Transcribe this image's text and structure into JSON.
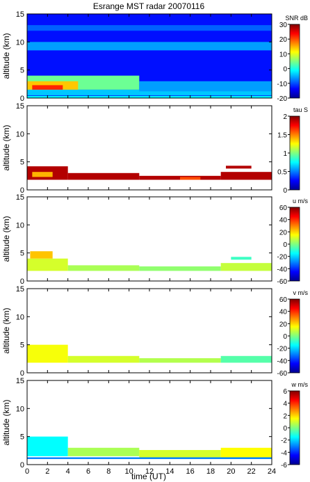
{
  "figure": {
    "title": "Esrange MST radar 20070116",
    "xlabel": "time (UT)",
    "ylabel": "altitude (km)"
  },
  "chart_data": [
    {
      "type": "heatmap",
      "title": "Esrange MST radar 20070116",
      "xlabel": "",
      "ylabel": "altitude (km)",
      "colorbar_label": "SNR dB",
      "xlim": [
        0,
        24
      ],
      "ylim": [
        0,
        15
      ],
      "yticks": [
        0,
        5,
        10,
        15
      ],
      "clim": [
        -20,
        30
      ],
      "cticks": [
        -20,
        -10,
        0,
        10,
        20,
        30
      ],
      "x_tick_labels_shown": false,
      "layers": [
        {
          "x_range": [
            0,
            24
          ],
          "y_range": [
            0,
            15
          ],
          "value": -13
        },
        {
          "x_range": [
            0,
            24
          ],
          "y_range": [
            0.5,
            1.5
          ],
          "value": -4
        },
        {
          "x_range": [
            0,
            11
          ],
          "y_range": [
            1.5,
            4
          ],
          "value": 4
        },
        {
          "x_range": [
            11,
            24
          ],
          "y_range": [
            1.2,
            3
          ],
          "value": -6
        },
        {
          "x_range": [
            0,
            5
          ],
          "y_range": [
            1.5,
            3
          ],
          "value": 14
        },
        {
          "x_range": [
            0.5,
            3.5
          ],
          "y_range": [
            1.5,
            2.3
          ],
          "value": 22
        },
        {
          "x_range": [
            0,
            24
          ],
          "y_range": [
            8.5,
            10
          ],
          "value": -6
        },
        {
          "x_range": [
            0,
            24
          ],
          "y_range": [
            12,
            13
          ],
          "value": -9
        },
        {
          "x_range": [
            0,
            24
          ],
          "y_range": [
            0,
            0.4
          ],
          "value": -2
        }
      ]
    },
    {
      "type": "heatmap",
      "title": "",
      "xlabel": "",
      "ylabel": "altitude (km)",
      "colorbar_label": "tau S",
      "xlim": [
        0,
        24
      ],
      "ylim": [
        0,
        15
      ],
      "yticks": [
        0,
        5,
        10,
        15
      ],
      "clim": [
        0,
        2
      ],
      "cticks": [
        0,
        0.5,
        1,
        1.5,
        2
      ],
      "x_tick_labels_shown": false,
      "layers": [
        {
          "x_range": [
            0,
            4
          ],
          "y_range": [
            1.8,
            4.2
          ],
          "value": 1.9
        },
        {
          "x_range": [
            0.5,
            2.5
          ],
          "y_range": [
            2.3,
            3.2
          ],
          "value": 1.4
        },
        {
          "x_range": [
            4,
            11
          ],
          "y_range": [
            1.8,
            3
          ],
          "value": 1.9
        },
        {
          "x_range": [
            11,
            19
          ],
          "y_range": [
            1.8,
            2.5
          ],
          "value": 1.9
        },
        {
          "x_range": [
            15,
            17
          ],
          "y_range": [
            1.8,
            2.3
          ],
          "value": 1.6
        },
        {
          "x_range": [
            19,
            24
          ],
          "y_range": [
            1.8,
            3.2
          ],
          "value": 1.9
        },
        {
          "x_range": [
            19.5,
            22
          ],
          "y_range": [
            3.8,
            4.3
          ],
          "value": 1.9
        }
      ]
    },
    {
      "type": "heatmap",
      "title": "",
      "xlabel": "",
      "ylabel": "altitude (km)",
      "colorbar_label": "u m/s",
      "xlim": [
        0,
        24
      ],
      "ylim": [
        0,
        15
      ],
      "yticks": [
        0,
        5,
        10,
        15
      ],
      "clim": [
        -60,
        60
      ],
      "cticks": [
        -60,
        -40,
        -20,
        0,
        20,
        40,
        60
      ],
      "x_tick_labels_shown": false,
      "layers": [
        {
          "x_range": [
            0,
            4
          ],
          "y_range": [
            1.8,
            4
          ],
          "value": 10
        },
        {
          "x_range": [
            0.3,
            2.5
          ],
          "y_range": [
            4,
            5.3
          ],
          "value": 22
        },
        {
          "x_range": [
            4,
            11
          ],
          "y_range": [
            1.8,
            2.8
          ],
          "value": 5
        },
        {
          "x_range": [
            11,
            19
          ],
          "y_range": [
            1.8,
            2.6
          ],
          "value": 2
        },
        {
          "x_range": [
            19,
            24
          ],
          "y_range": [
            1.8,
            3.2
          ],
          "value": 8
        },
        {
          "x_range": [
            20,
            22
          ],
          "y_range": [
            3.8,
            4.3
          ],
          "value": -8
        }
      ]
    },
    {
      "type": "heatmap",
      "title": "",
      "xlabel": "",
      "ylabel": "altitude (km)",
      "colorbar_label": "v m/s",
      "xlim": [
        0,
        24
      ],
      "ylim": [
        0,
        15
      ],
      "yticks": [
        0,
        5,
        10,
        15
      ],
      "clim": [
        -60,
        60
      ],
      "cticks": [
        -60,
        -40,
        -20,
        0,
        20,
        40,
        60
      ],
      "x_tick_labels_shown": false,
      "layers": [
        {
          "x_range": [
            0,
            4
          ],
          "y_range": [
            1.8,
            5
          ],
          "value": 14
        },
        {
          "x_range": [
            4,
            11
          ],
          "y_range": [
            1.8,
            3
          ],
          "value": 10
        },
        {
          "x_range": [
            11,
            19
          ],
          "y_range": [
            1.8,
            2.6
          ],
          "value": 6
        },
        {
          "x_range": [
            19,
            24
          ],
          "y_range": [
            1.8,
            3
          ],
          "value": -5
        }
      ]
    },
    {
      "type": "heatmap",
      "title": "",
      "xlabel": "time (UT)",
      "ylabel": "altitude (km)",
      "colorbar_label": "w m/s",
      "xlim": [
        0,
        24
      ],
      "ylim": [
        0,
        15
      ],
      "yticks": [
        0,
        5,
        10,
        15
      ],
      "xticks": [
        0,
        2,
        4,
        6,
        8,
        10,
        12,
        14,
        16,
        18,
        20,
        22,
        24
      ],
      "clim": [
        -6,
        6
      ],
      "cticks": [
        -6,
        -4,
        -2,
        0,
        2,
        4,
        6
      ],
      "x_tick_labels_shown": true,
      "layers": [
        {
          "x_range": [
            0,
            4
          ],
          "y_range": [
            1.5,
            5
          ],
          "value": -1.5
        },
        {
          "x_range": [
            4,
            11
          ],
          "y_range": [
            1.5,
            3
          ],
          "value": 0.5
        },
        {
          "x_range": [
            11,
            19
          ],
          "y_range": [
            1.2,
            2.6
          ],
          "value": 1
        },
        {
          "x_range": [
            19,
            24
          ],
          "y_range": [
            1.2,
            3
          ],
          "value": 1.5
        },
        {
          "x_range": [
            0,
            24
          ],
          "y_range": [
            1,
            1.3
          ],
          "value": -3
        }
      ]
    }
  ]
}
